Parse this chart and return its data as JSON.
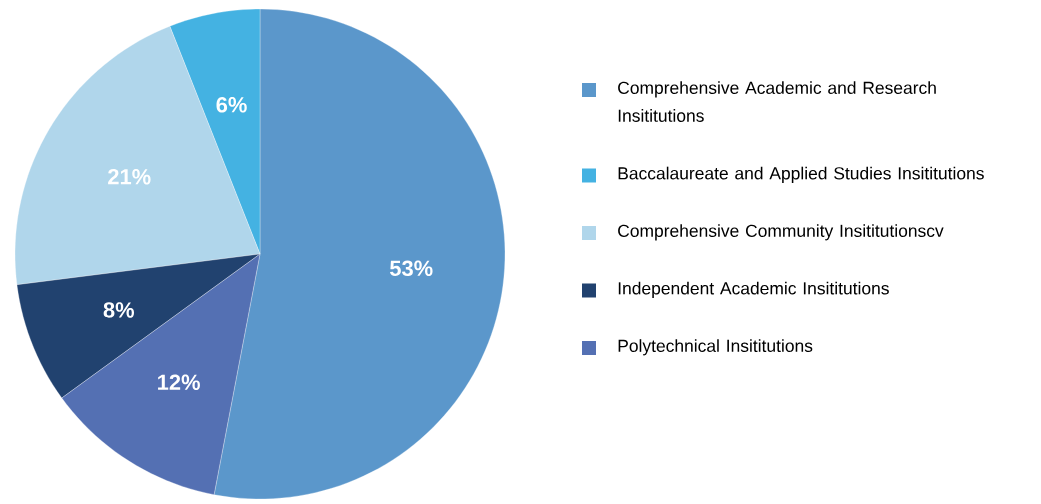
{
  "chart_data": {
    "type": "pie",
    "categories": [
      "Comprehensive Academic and Research Insititutions",
      "Baccalaureate and Applied Studies Insititutions",
      "Comprehensive Community Insititutionscv",
      "Independent Academic Insititutions",
      "Polytechnical Insititutions"
    ],
    "values": [
      53,
      6,
      21,
      8,
      12
    ],
    "colors": [
      "#5b97cb",
      "#44b2e2",
      "#b0d6eb",
      "#21426f",
      "#5470b3"
    ],
    "value_labels": [
      "53%",
      "6%",
      "21%",
      "8%",
      "12%"
    ],
    "legend": "right"
  }
}
